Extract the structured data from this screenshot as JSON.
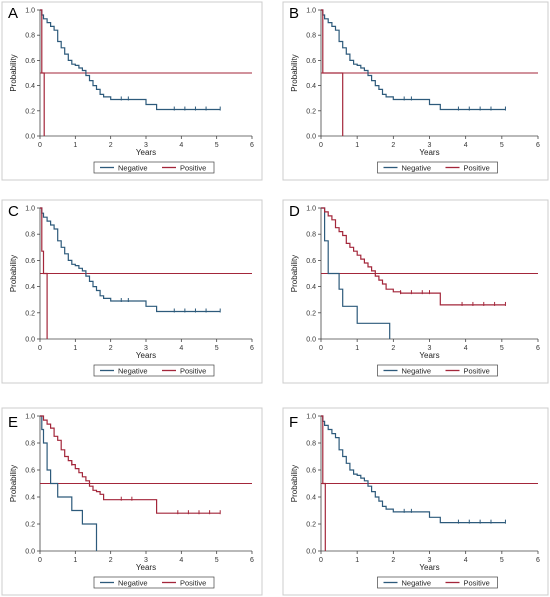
{
  "colors": {
    "negative": "#2d5a7b",
    "positive": "#a3263a",
    "axis": "#444444",
    "frame": "#cccccc"
  },
  "chart_data": [
    {
      "panel": "A",
      "type": "line",
      "xlabel": "Years",
      "ylabel": "Probability",
      "xlim": [
        0,
        6
      ],
      "ylim": [
        0,
        1
      ],
      "xticks": [
        "0",
        "1",
        "2",
        "3",
        "4",
        "5",
        "6"
      ],
      "yticks": [
        "0.0",
        "0.2",
        "0.4",
        "0.6",
        "0.8",
        "1.0"
      ],
      "reference_line": 0.5,
      "series": [
        {
          "name": "Negative",
          "x": [
            0,
            0.05,
            0.1,
            0.2,
            0.3,
            0.4,
            0.5,
            0.6,
            0.7,
            0.8,
            0.9,
            1.0,
            1.1,
            1.2,
            1.3,
            1.4,
            1.5,
            1.6,
            1.7,
            1.8,
            2.0,
            2.3,
            3.0,
            3.3,
            4.0,
            5.1
          ],
          "y": [
            1.0,
            0.96,
            0.93,
            0.9,
            0.87,
            0.84,
            0.75,
            0.7,
            0.65,
            0.6,
            0.57,
            0.56,
            0.54,
            0.52,
            0.48,
            0.44,
            0.4,
            0.37,
            0.33,
            0.31,
            0.29,
            0.29,
            0.25,
            0.21,
            0.21,
            0.21
          ],
          "censored_x": [
            2.3,
            2.5,
            3.8,
            4.1,
            4.4,
            4.7,
            5.1
          ]
        },
        {
          "name": "Positive",
          "x": [
            0,
            0.05,
            0.12,
            0.12
          ],
          "y": [
            1.0,
            0.5,
            0.5,
            0.0
          ]
        }
      ],
      "legend": [
        "Negative",
        "Positive"
      ]
    },
    {
      "panel": "B",
      "type": "line",
      "xlabel": "Years",
      "ylabel": "Probability",
      "xlim": [
        0,
        6
      ],
      "ylim": [
        0,
        1
      ],
      "xticks": [
        "0",
        "1",
        "2",
        "3",
        "4",
        "5",
        "6"
      ],
      "yticks": [
        "0.0",
        "0.2",
        "0.4",
        "0.6",
        "0.8",
        "1.0"
      ],
      "reference_line": 0.5,
      "series": [
        {
          "name": "Negative",
          "x": [
            0,
            0.05,
            0.1,
            0.2,
            0.3,
            0.4,
            0.5,
            0.6,
            0.7,
            0.8,
            0.9,
            1.0,
            1.1,
            1.2,
            1.3,
            1.4,
            1.5,
            1.6,
            1.7,
            1.8,
            2.0,
            2.3,
            3.0,
            3.3,
            4.0,
            5.1
          ],
          "y": [
            1.0,
            0.96,
            0.93,
            0.9,
            0.87,
            0.84,
            0.75,
            0.7,
            0.65,
            0.6,
            0.57,
            0.56,
            0.54,
            0.52,
            0.48,
            0.44,
            0.4,
            0.37,
            0.33,
            0.31,
            0.29,
            0.29,
            0.25,
            0.21,
            0.21,
            0.21
          ],
          "censored_x": [
            2.3,
            2.5,
            3.8,
            4.1,
            4.4,
            4.7,
            5.1
          ]
        },
        {
          "name": "Positive",
          "x": [
            0,
            0.05,
            0.6,
            0.6
          ],
          "y": [
            1.0,
            0.5,
            0.5,
            0.0
          ]
        }
      ],
      "legend": [
        "Negative",
        "Positive"
      ]
    },
    {
      "panel": "C",
      "type": "line",
      "xlabel": "Years",
      "ylabel": "Probability",
      "xlim": [
        0,
        6
      ],
      "ylim": [
        0,
        1
      ],
      "xticks": [
        "0",
        "1",
        "2",
        "3",
        "4",
        "5",
        "6"
      ],
      "yticks": [
        "0.0",
        "0.2",
        "0.4",
        "0.6",
        "0.8",
        "1.0"
      ],
      "reference_line": 0.5,
      "series": [
        {
          "name": "Negative",
          "x": [
            0,
            0.05,
            0.1,
            0.2,
            0.3,
            0.4,
            0.5,
            0.6,
            0.7,
            0.8,
            0.9,
            1.0,
            1.1,
            1.2,
            1.3,
            1.4,
            1.5,
            1.6,
            1.7,
            1.8,
            2.0,
            2.3,
            3.0,
            3.3,
            4.0,
            5.1
          ],
          "y": [
            1.0,
            0.96,
            0.93,
            0.9,
            0.87,
            0.84,
            0.75,
            0.7,
            0.65,
            0.6,
            0.57,
            0.56,
            0.54,
            0.52,
            0.48,
            0.44,
            0.4,
            0.37,
            0.33,
            0.31,
            0.29,
            0.29,
            0.25,
            0.21,
            0.21,
            0.21
          ],
          "censored_x": [
            2.3,
            2.5,
            3.8,
            4.1,
            4.4,
            4.7,
            5.1
          ]
        },
        {
          "name": "Positive",
          "x": [
            0,
            0.05,
            0.1,
            0.2,
            0.2
          ],
          "y": [
            1.0,
            0.67,
            0.5,
            0.33,
            0.0
          ]
        }
      ],
      "legend": [
        "Negative",
        "Positive"
      ]
    },
    {
      "panel": "D",
      "type": "line",
      "xlabel": "Years",
      "ylabel": "Probability",
      "xlim": [
        0,
        6
      ],
      "ylim": [
        0,
        1
      ],
      "xticks": [
        "0",
        "1",
        "2",
        "3",
        "4",
        "5",
        "6"
      ],
      "yticks": [
        "0.0",
        "0.2",
        "0.4",
        "0.6",
        "0.8",
        "1.0"
      ],
      "reference_line": 0.5,
      "series": [
        {
          "name": "Negative",
          "x": [
            0,
            0.1,
            0.2,
            0.5,
            0.6,
            1.0,
            1.9,
            1.9
          ],
          "y": [
            1.0,
            0.75,
            0.5,
            0.38,
            0.25,
            0.12,
            0.12,
            0.0
          ]
        },
        {
          "name": "Positive",
          "x": [
            0,
            0.1,
            0.2,
            0.3,
            0.4,
            0.5,
            0.6,
            0.7,
            0.8,
            0.9,
            1.0,
            1.1,
            1.2,
            1.3,
            1.4,
            1.5,
            1.6,
            1.7,
            1.8,
            2.0,
            2.2,
            2.6,
            3.3,
            4.0,
            5.1
          ],
          "y": [
            1.0,
            0.97,
            0.94,
            0.91,
            0.85,
            0.82,
            0.79,
            0.73,
            0.7,
            0.67,
            0.64,
            0.61,
            0.58,
            0.55,
            0.52,
            0.48,
            0.45,
            0.42,
            0.38,
            0.36,
            0.35,
            0.35,
            0.26,
            0.26,
            0.26
          ],
          "censored_x": [
            2.2,
            2.5,
            2.8,
            3.0,
            3.9,
            4.2,
            4.5,
            4.8,
            5.1
          ]
        }
      ],
      "legend": [
        "Negative",
        "Positive"
      ]
    },
    {
      "panel": "E",
      "type": "line",
      "xlabel": "Years",
      "ylabel": "Probability",
      "xlim": [
        0,
        6
      ],
      "ylim": [
        0,
        1
      ],
      "xticks": [
        "0",
        "1",
        "2",
        "3",
        "4",
        "5",
        "6"
      ],
      "yticks": [
        "0.0",
        "0.2",
        "0.4",
        "0.6",
        "0.8",
        "1.0"
      ],
      "reference_line": 0.5,
      "series": [
        {
          "name": "Negative",
          "x": [
            0,
            0.05,
            0.1,
            0.2,
            0.3,
            0.5,
            0.9,
            1.2,
            1.6,
            1.6
          ],
          "y": [
            1.0,
            0.9,
            0.8,
            0.6,
            0.5,
            0.4,
            0.3,
            0.2,
            0.1,
            0.0
          ]
        },
        {
          "name": "Positive",
          "x": [
            0,
            0.1,
            0.2,
            0.3,
            0.4,
            0.5,
            0.6,
            0.7,
            0.8,
            0.9,
            1.0,
            1.1,
            1.2,
            1.3,
            1.4,
            1.5,
            1.6,
            1.7,
            1.8,
            2.0,
            2.2,
            2.6,
            3.3,
            4.0,
            5.1
          ],
          "y": [
            1.0,
            0.97,
            0.94,
            0.91,
            0.85,
            0.82,
            0.75,
            0.7,
            0.67,
            0.64,
            0.61,
            0.58,
            0.55,
            0.52,
            0.48,
            0.45,
            0.44,
            0.42,
            0.38,
            0.38,
            0.38,
            0.38,
            0.28,
            0.28,
            0.28
          ],
          "censored_x": [
            0.9,
            2.3,
            2.6,
            3.9,
            4.2,
            4.5,
            4.8,
            5.1
          ]
        }
      ],
      "legend": [
        "Negative",
        "Positive"
      ]
    },
    {
      "panel": "F",
      "type": "line",
      "xlabel": "Years",
      "ylabel": "Probability",
      "xlim": [
        0,
        6
      ],
      "ylim": [
        0,
        1
      ],
      "xticks": [
        "0",
        "1",
        "2",
        "3",
        "4",
        "5",
        "6"
      ],
      "yticks": [
        "0.0",
        "0.2",
        "0.4",
        "0.6",
        "0.8",
        "1.0"
      ],
      "reference_line": 0.5,
      "series": [
        {
          "name": "Negative",
          "x": [
            0,
            0.05,
            0.1,
            0.2,
            0.3,
            0.4,
            0.5,
            0.6,
            0.7,
            0.8,
            0.9,
            1.0,
            1.1,
            1.2,
            1.3,
            1.4,
            1.5,
            1.6,
            1.7,
            1.8,
            2.0,
            2.3,
            3.0,
            3.3,
            4.0,
            5.1
          ],
          "y": [
            1.0,
            0.96,
            0.93,
            0.9,
            0.87,
            0.84,
            0.75,
            0.7,
            0.65,
            0.6,
            0.57,
            0.56,
            0.54,
            0.52,
            0.48,
            0.44,
            0.4,
            0.37,
            0.33,
            0.31,
            0.29,
            0.29,
            0.25,
            0.21,
            0.21,
            0.21
          ],
          "censored_x": [
            2.3,
            2.5,
            3.8,
            4.1,
            4.4,
            4.7,
            5.1
          ]
        },
        {
          "name": "Positive",
          "x": [
            0,
            0.05,
            0.12,
            0.12
          ],
          "y": [
            1.0,
            0.5,
            0.33,
            0.0
          ]
        }
      ],
      "legend": [
        "Negative",
        "Positive"
      ]
    }
  ]
}
